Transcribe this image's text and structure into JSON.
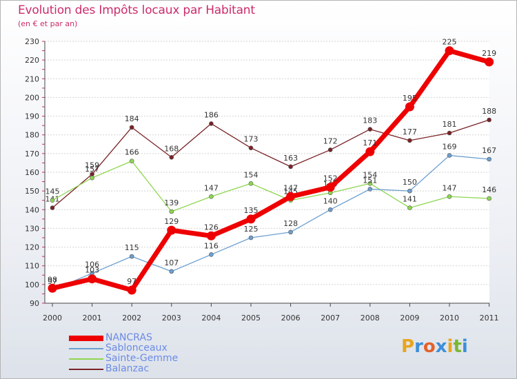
{
  "header": {
    "title": "Evolution des Impôts locaux par Habitant",
    "subtitle": "(en € et par an)"
  },
  "brand": {
    "text": "Proxiti",
    "letters": [
      "P",
      "r",
      "o",
      "x",
      "i",
      "t",
      "i"
    ],
    "colors": [
      "#e8a51e",
      "#3d8fd8",
      "#e2622a",
      "#3d8fd8",
      "#e8a51e",
      "#79b833",
      "#3d8fd8"
    ]
  },
  "chart_data": {
    "type": "line",
    "title": "Evolution des Impôts locaux par Habitant",
    "subtitle": "(en € et par an)",
    "xlabel": "",
    "ylabel": "",
    "ylim": [
      90,
      230
    ],
    "yticks": [
      90,
      100,
      110,
      120,
      130,
      140,
      150,
      160,
      170,
      180,
      190,
      200,
      210,
      220,
      230
    ],
    "grid": true,
    "legend_position": "bottom-left",
    "categories": [
      "2000",
      "2001",
      "2002",
      "2003",
      "2004",
      "2005",
      "2006",
      "2007",
      "2008",
      "2009",
      "2010",
      "2011"
    ],
    "series": [
      {
        "name": "Balanzac",
        "color": "#7a2226",
        "values": [
          141,
          159,
          184,
          168,
          186,
          173,
          163,
          172,
          183,
          177,
          181,
          188
        ]
      },
      {
        "name": "Sainte-Gemme",
        "color": "#8ed650",
        "values": [
          145,
          157,
          166,
          139,
          147,
          154,
          145,
          149,
          154,
          141,
          147,
          146
        ]
      },
      {
        "name": "Sablonceaux",
        "color": "#6b9fd0",
        "values": [
          97,
          106,
          115,
          107,
          116,
          125,
          128,
          140,
          151,
          150,
          169,
          167
        ]
      },
      {
        "name": "NANCRAS",
        "color": "#ee0000",
        "values": [
          98,
          103,
          97,
          129,
          126,
          135,
          147,
          152,
          171,
          195,
          225,
          219
        ]
      }
    ],
    "legend": [
      "NANCRAS",
      "Sablonceaux",
      "Sainte-Gemme",
      "Balanzac"
    ]
  }
}
